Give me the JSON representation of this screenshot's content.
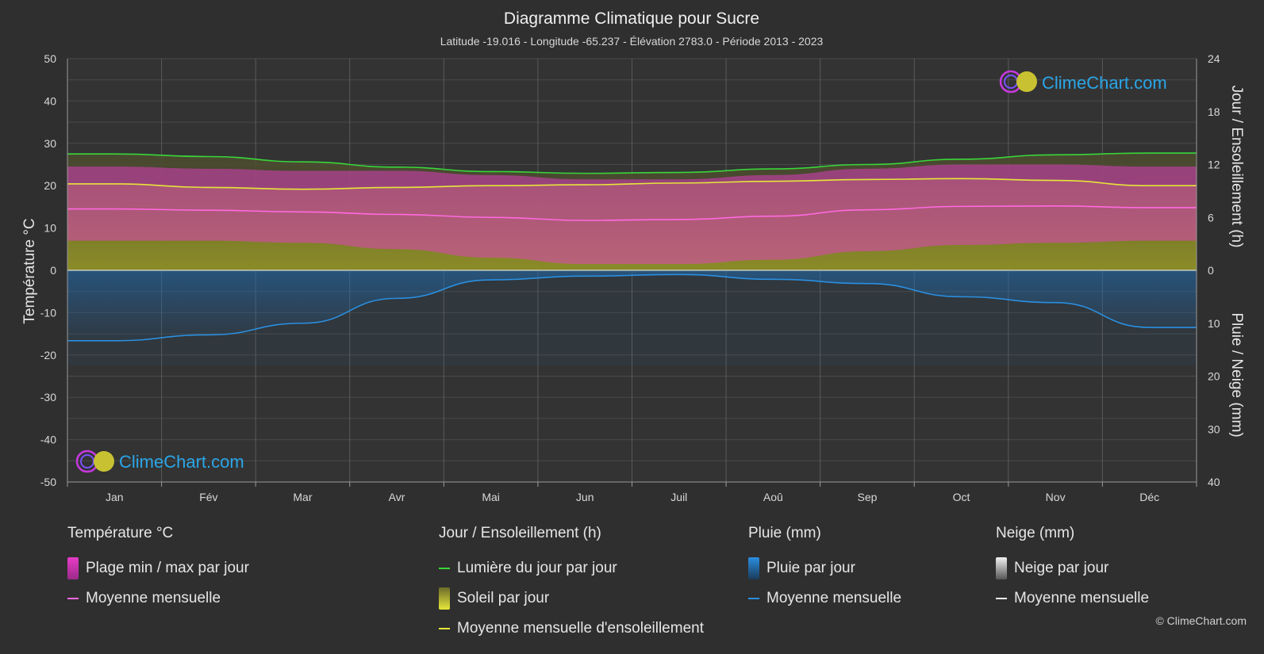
{
  "chart_data": {
    "type": "area",
    "title": "Diagramme Climatique pour Sucre",
    "subtitle": "Latitude -19.016 - Longitude -65.237 - Élévation 2783.0 - Période 2013 - 2023",
    "categories": [
      "Jan",
      "Fév",
      "Mar",
      "Avr",
      "Mai",
      "Jun",
      "Juil",
      "Aoû",
      "Sep",
      "Oct",
      "Nov",
      "Déc"
    ],
    "y_left": {
      "label": "Température °C",
      "ylim": [
        -50,
        50
      ],
      "ticks": [
        50,
        40,
        30,
        20,
        10,
        0,
        -10,
        -20,
        -30,
        -40,
        -50
      ]
    },
    "y_right_top": {
      "label": "Jour / Ensoleillement (h)",
      "ylim": [
        0,
        24
      ],
      "ticks": [
        24,
        18,
        12,
        6,
        0
      ]
    },
    "y_right_bottom": {
      "label": "Pluie / Neige (mm)",
      "ylim": [
        0,
        40
      ],
      "ticks": [
        0,
        10,
        20,
        30,
        40
      ]
    },
    "grid": true,
    "series": [
      {
        "name": "Lumière du jour par jour",
        "axis": "hours",
        "color": "#39d639",
        "values": [
          13.2,
          12.9,
          12.3,
          11.7,
          11.2,
          11.0,
          11.1,
          11.5,
          12.0,
          12.6,
          13.1,
          13.3
        ]
      },
      {
        "name": "Moyenne mensuelle d'ensoleillement",
        "axis": "hours",
        "color": "#e6e63a",
        "values": [
          9.8,
          9.4,
          9.2,
          9.4,
          9.6,
          9.7,
          9.9,
          10.1,
          10.3,
          10.4,
          10.2,
          9.6
        ]
      },
      {
        "name": "Moyenne mensuelle",
        "group": "Température °C",
        "axis": "temp",
        "color": "#ff69e0",
        "values": [
          14.5,
          14.2,
          13.8,
          13.2,
          12.5,
          11.8,
          12.0,
          12.8,
          14.3,
          15.1,
          15.2,
          14.8
        ]
      },
      {
        "name": "Moyenne mensuelle",
        "group": "Pluie (mm)",
        "axis": "precip",
        "color": "#2a8fe0",
        "values": [
          13.3,
          12.2,
          10.0,
          5.3,
          1.8,
          1.1,
          0.8,
          1.7,
          2.5,
          5.0,
          6.1,
          10.8
        ]
      },
      {
        "name": "Plage min / max par jour",
        "group": "Température °C",
        "axis": "temp",
        "color": "#e83cc8",
        "max": [
          24.5,
          24.0,
          23.5,
          23.5,
          22.5,
          21.5,
          21.5,
          22.5,
          24.0,
          25.0,
          25.0,
          24.5
        ],
        "min": [
          7.0,
          7.0,
          6.5,
          5.0,
          3.0,
          1.5,
          1.5,
          2.5,
          4.5,
          6.0,
          6.5,
          7.0
        ]
      }
    ],
    "legend_placement": "bottom"
  },
  "legend": {
    "groups": [
      {
        "title": "Température °C",
        "items": [
          {
            "label": "Plage min / max par jour",
            "kind": "box",
            "color": "#e83cc8"
          },
          {
            "label": "Moyenne mensuelle",
            "kind": "line",
            "color": "#ff69e0"
          }
        ]
      },
      {
        "title": "Jour / Ensoleillement (h)",
        "items": [
          {
            "label": "Lumière du jour par jour",
            "kind": "line",
            "color": "#39d639"
          },
          {
            "label": "Soleil par jour",
            "kind": "box",
            "color": "#c8c832"
          },
          {
            "label": "Moyenne mensuelle d'ensoleillement",
            "kind": "line",
            "color": "#e6e63a"
          }
        ]
      },
      {
        "title": "Pluie (mm)",
        "items": [
          {
            "label": "Pluie par jour",
            "kind": "box",
            "color": "#2a8fe0"
          },
          {
            "label": "Moyenne mensuelle",
            "kind": "line",
            "color": "#2a8fe0"
          }
        ]
      },
      {
        "title": "Neige (mm)",
        "items": [
          {
            "label": "Neige par jour",
            "kind": "box",
            "color": "#dddddd"
          },
          {
            "label": "Moyenne mensuelle",
            "kind": "line",
            "color": "#eeeeee"
          }
        ]
      }
    ]
  },
  "logo_text": "ClimeChart.com",
  "copyright": "© ClimeChart.com"
}
